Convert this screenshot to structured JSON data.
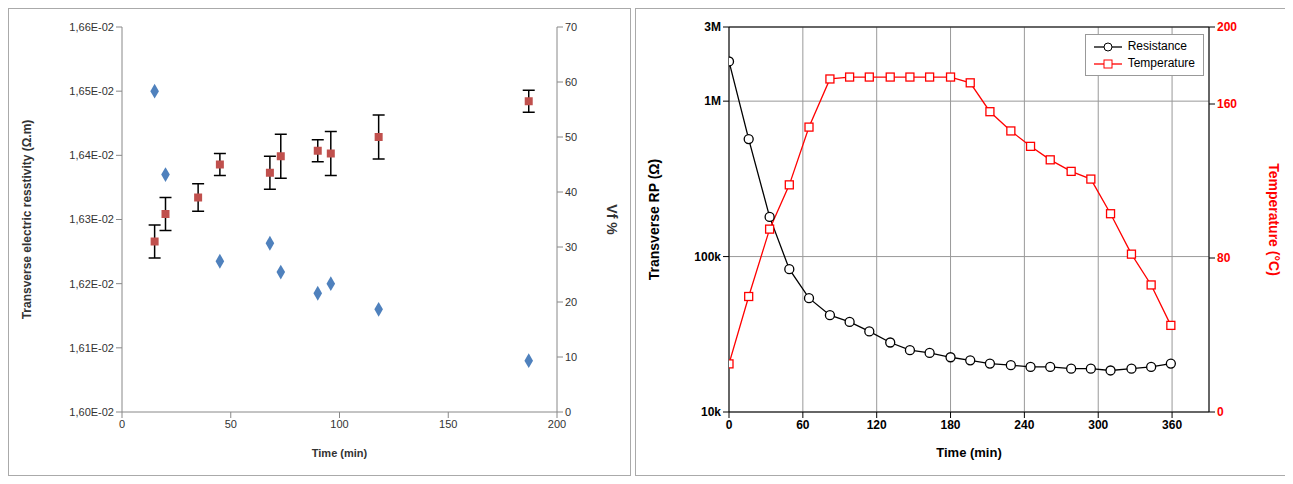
{
  "chart_data": [
    {
      "type": "scatter",
      "xlabel": "Time (min)",
      "ylabel": "Transverse electric resstivity (Ω.m)",
      "y2label": "Vf %",
      "xlim": [
        0,
        200
      ],
      "xticks": [
        0,
        50,
        100,
        150,
        200
      ],
      "ylim": [
        0.016,
        0.0166
      ],
      "yticks": [
        {
          "value": 0.016,
          "label": "1,60E-02"
        },
        {
          "value": 0.0161,
          "label": "1,61E-02"
        },
        {
          "value": 0.0162,
          "label": "1,62E-02"
        },
        {
          "value": 0.0163,
          "label": "1,63E-02"
        },
        {
          "value": 0.0164,
          "label": "1,64E-02"
        },
        {
          "value": 0.0165,
          "label": "1,65E-02"
        },
        {
          "value": 0.0166,
          "label": "1,66E-02"
        }
      ],
      "y2lim": [
        0,
        70
      ],
      "y2ticks": [
        0,
        10,
        20,
        30,
        40,
        50,
        60,
        70
      ],
      "grid": false,
      "series": [
        {
          "color": "#4f81bd",
          "marker": "diamond",
          "x": [
            15,
            20,
            45,
            68,
            73,
            90,
            96,
            118,
            187
          ],
          "values": [
            0.0165,
            0.01637,
            0.016235,
            0.016263,
            0.016218,
            0.016185,
            0.0162,
            0.01616,
            0.01608
          ]
        },
        {
          "color": "#c0504d",
          "marker": "square",
          "axis": "y2",
          "x": [
            15,
            20,
            35,
            45,
            68,
            73,
            90,
            96,
            118,
            187
          ],
          "values": [
            31,
            36,
            39,
            45,
            43.5,
            46.5,
            47.5,
            47,
            50,
            56.5
          ],
          "errors": [
            3,
            3,
            2.5,
            2,
            3,
            4,
            2,
            4,
            4,
            2
          ]
        }
      ]
    },
    {
      "type": "line",
      "xlabel": "Time (min)",
      "ylabel": "Transverse RP (Ω)",
      "y2label": "Temperature (°C)",
      "x": [
        0,
        16,
        33,
        49,
        65,
        82,
        98,
        114,
        131,
        147,
        163,
        180,
        196,
        212,
        229,
        245,
        261,
        278,
        294,
        310,
        327,
        343,
        359
      ],
      "xlim": [
        0,
        390
      ],
      "xticks": [
        0,
        60,
        120,
        180,
        240,
        300,
        360
      ],
      "ylim": [
        10000,
        3000000
      ],
      "yticks": [
        {
          "value": 10000,
          "label": "10k"
        },
        {
          "value": 100000,
          "label": "100k"
        },
        {
          "value": 1000000,
          "label": "1M"
        },
        {
          "value": 3000000,
          "label": "3M"
        }
      ],
      "log": "y",
      "y2lim": [
        0,
        200
      ],
      "y2ticks": [
        0,
        80,
        160,
        200
      ],
      "grid": true,
      "legend": "top-right",
      "series": [
        {
          "name": "Resistance",
          "color": "#000000",
          "marker": "circle",
          "values": [
            1800000,
            570000,
            180000,
            83000,
            54000,
            42000,
            38000,
            33000,
            28000,
            25000,
            24000,
            22500,
            21500,
            20500,
            20000,
            19500,
            19500,
            19000,
            19000,
            18500,
            19000,
            19500,
            20500
          ]
        },
        {
          "name": "Temperature",
          "color": "#ff0000",
          "marker": "square",
          "axis": "y2",
          "values": [
            25,
            60,
            95,
            118,
            148,
            173,
            174,
            174,
            174,
            174,
            174,
            174,
            171,
            156,
            146,
            138,
            131,
            125,
            121,
            103,
            82,
            66,
            45
          ]
        }
      ]
    }
  ]
}
